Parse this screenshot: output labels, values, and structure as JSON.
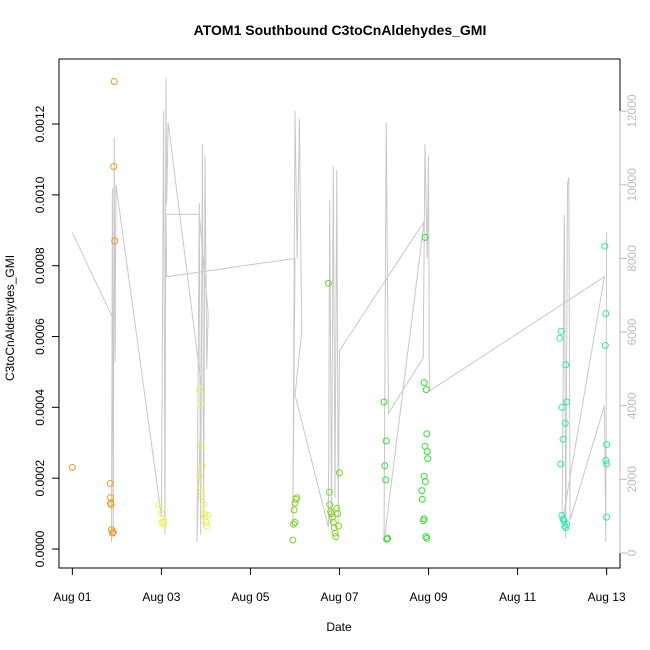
{
  "chart_data": {
    "type": "scatter",
    "title": "ATOM1 Southbound C3toCnAldehydes_GMI",
    "xlabel": "Date",
    "ylabel": "C3toCnAldehydes_GMI",
    "x_tick_labels": [
      "Aug 01",
      "Aug 03",
      "Aug 05",
      "Aug 07",
      "Aug 09",
      "Aug 11",
      "Aug 13"
    ],
    "x_tick_days": [
      1,
      3,
      5,
      7,
      9,
      11,
      13
    ],
    "xlim": [
      0.7,
      13.3
    ],
    "ylim": [
      0,
      0.00133
    ],
    "y_ticks": [
      0.0,
      0.0002,
      0.0004,
      0.0006,
      0.0008,
      0.001,
      0.0012
    ],
    "y_tick_labels": [
      "0.0000",
      "0.0002",
      "0.0004",
      "0.0006",
      "0.0008",
      "0.0010",
      "0.0012"
    ],
    "secondary_axis": {
      "ylim": [
        0,
        12900
      ],
      "ticks": [
        0,
        2000,
        4000,
        6000,
        8000,
        10000,
        12000
      ],
      "tick_labels": [
        "0",
        "2000",
        "4000",
        "6000",
        "8000",
        "10000",
        "12000"
      ],
      "color": "#bdbdbd"
    },
    "altitude_trace": [
      [
        1.0,
        8700
      ],
      [
        1.9,
        6400
      ],
      [
        1.88,
        300
      ],
      [
        1.9,
        9900
      ],
      [
        1.92,
        500
      ],
      [
        1.94,
        11300
      ],
      [
        1.96,
        5200
      ],
      [
        1.98,
        10000
      ],
      [
        3.0,
        1000
      ],
      [
        3.05,
        12000
      ],
      [
        3.08,
        500
      ],
      [
        3.1,
        12900
      ],
      [
        3.12,
        9500
      ],
      [
        3.15,
        11700
      ],
      [
        3.9,
        4500
      ],
      [
        3.8,
        300
      ],
      [
        3.85,
        9500
      ],
      [
        3.88,
        500
      ],
      [
        3.92,
        11100
      ],
      [
        3.95,
        700
      ],
      [
        3.98,
        10800
      ],
      [
        4.02,
        5000
      ],
      [
        4.05,
        6500
      ],
      [
        3.85,
        9200
      ],
      [
        3.1,
        9200
      ],
      [
        3.12,
        7500
      ],
      [
        6.0,
        8000
      ],
      [
        5.95,
        700
      ],
      [
        6.0,
        12000
      ],
      [
        6.05,
        8000
      ],
      [
        6.1,
        11800
      ],
      [
        6.15,
        6000
      ],
      [
        6.0,
        4300
      ],
      [
        6.75,
        700
      ],
      [
        6.78,
        9600
      ],
      [
        6.82,
        800
      ],
      [
        6.86,
        10500
      ],
      [
        6.9,
        1500
      ],
      [
        6.94,
        10400
      ],
      [
        6.97,
        800
      ],
      [
        7.0,
        5500
      ],
      [
        8.9,
        9000
      ],
      [
        8.0,
        300
      ],
      [
        8.05,
        11700
      ],
      [
        8.1,
        3800
      ],
      [
        8.88,
        5300
      ],
      [
        8.92,
        11100
      ],
      [
        8.97,
        8000
      ],
      [
        9.0,
        10800
      ],
      [
        9.02,
        4400
      ],
      [
        12.95,
        7500
      ],
      [
        12.0,
        800
      ],
      [
        12.05,
        9200
      ],
      [
        12.08,
        400
      ],
      [
        12.12,
        10000
      ],
      [
        12.15,
        10200
      ],
      [
        12.18,
        900
      ],
      [
        12.95,
        4000
      ],
      [
        12.98,
        300
      ],
      [
        13.0,
        8700
      ]
    ],
    "points": [
      {
        "x": 1.0,
        "y": 0.00023,
        "color": "#f5961e"
      },
      {
        "x": 1.85,
        "y": 0.000185,
        "color": "#f5961e"
      },
      {
        "x": 1.86,
        "y": 0.000145,
        "color": "#f5961e"
      },
      {
        "x": 1.86,
        "y": 0.00013,
        "color": "#f5961e"
      },
      {
        "x": 1.87,
        "y": 0.000125,
        "color": "#f5961e"
      },
      {
        "x": 1.88,
        "y": 5.5e-05,
        "color": "#f5961e"
      },
      {
        "x": 1.9,
        "y": 4.5e-05,
        "color": "#f5961e"
      },
      {
        "x": 1.92,
        "y": 4.8e-05,
        "color": "#f5961e"
      },
      {
        "x": 1.93,
        "y": 0.00108,
        "color": "#f5961e"
      },
      {
        "x": 1.95,
        "y": 0.00087,
        "color": "#f5961e"
      },
      {
        "x": 1.94,
        "y": 0.00132,
        "color": "#f5961e"
      },
      {
        "x": 2.95,
        "y": 0.000125,
        "color": "#eef05a"
      },
      {
        "x": 3.0,
        "y": 0.0001,
        "color": "#eef05a"
      },
      {
        "x": 3.02,
        "y": 7.5e-05,
        "color": "#eef05a"
      },
      {
        "x": 3.04,
        "y": 7e-05,
        "color": "#eef05a"
      },
      {
        "x": 3.06,
        "y": 7.8e-05,
        "color": "#eef05a"
      },
      {
        "x": 3.85,
        "y": 0.00045,
        "color": "#eef05a"
      },
      {
        "x": 3.88,
        "y": 0.00041,
        "color": "#eef05a"
      },
      {
        "x": 3.9,
        "y": 0.00029,
        "color": "#eef05a"
      },
      {
        "x": 3.92,
        "y": 0.000235,
        "color": "#eef05a"
      },
      {
        "x": 3.86,
        "y": 0.000205,
        "color": "#eef05a"
      },
      {
        "x": 3.88,
        "y": 0.000175,
        "color": "#eef05a"
      },
      {
        "x": 3.9,
        "y": 0.00015,
        "color": "#eef05a"
      },
      {
        "x": 3.95,
        "y": 0.000125,
        "color": "#eef05a"
      },
      {
        "x": 3.96,
        "y": 0.0001,
        "color": "#eef05a"
      },
      {
        "x": 3.98,
        "y": 9e-05,
        "color": "#eef05a"
      },
      {
        "x": 4.0,
        "y": 7.5e-05,
        "color": "#eef05a"
      },
      {
        "x": 4.02,
        "y": 6.5e-05,
        "color": "#eef05a"
      },
      {
        "x": 4.04,
        "y": 9.5e-05,
        "color": "#eef05a"
      },
      {
        "x": 5.95,
        "y": 2.5e-05,
        "color": "#7fd41e"
      },
      {
        "x": 5.97,
        "y": 7e-05,
        "color": "#7fd41e"
      },
      {
        "x": 5.98,
        "y": 0.00011,
        "color": "#7fd41e"
      },
      {
        "x": 6.0,
        "y": 0.00013,
        "color": "#7fd41e"
      },
      {
        "x": 6.02,
        "y": 0.00014,
        "color": "#7fd41e"
      },
      {
        "x": 6.04,
        "y": 0.000145,
        "color": "#7fd41e"
      },
      {
        "x": 6.0,
        "y": 7.5e-05,
        "color": "#7fd41e"
      },
      {
        "x": 6.75,
        "y": 0.00075,
        "color": "#7fd41e"
      },
      {
        "x": 6.77,
        "y": 0.00016,
        "color": "#7fd41e"
      },
      {
        "x": 6.78,
        "y": 0.000125,
        "color": "#7fd41e"
      },
      {
        "x": 6.8,
        "y": 0.000105,
        "color": "#7fd41e"
      },
      {
        "x": 6.82,
        "y": 0.0001,
        "color": "#7fd41e"
      },
      {
        "x": 6.84,
        "y": 9e-05,
        "color": "#7fd41e"
      },
      {
        "x": 6.86,
        "y": 7.5e-05,
        "color": "#7fd41e"
      },
      {
        "x": 6.88,
        "y": 6e-05,
        "color": "#7fd41e"
      },
      {
        "x": 6.9,
        "y": 4.5e-05,
        "color": "#7fd41e"
      },
      {
        "x": 6.92,
        "y": 3.5e-05,
        "color": "#7fd41e"
      },
      {
        "x": 6.94,
        "y": 0.000115,
        "color": "#7fd41e"
      },
      {
        "x": 6.96,
        "y": 0.0001,
        "color": "#7fd41e"
      },
      {
        "x": 6.98,
        "y": 6.5e-05,
        "color": "#7fd41e"
      },
      {
        "x": 7.0,
        "y": 0.000215,
        "color": "#7fd41e"
      },
      {
        "x": 8.0,
        "y": 0.000415,
        "color": "#35e035"
      },
      {
        "x": 8.02,
        "y": 0.000235,
        "color": "#35e035"
      },
      {
        "x": 8.04,
        "y": 0.000195,
        "color": "#35e035"
      },
      {
        "x": 8.05,
        "y": 0.000305,
        "color": "#35e035"
      },
      {
        "x": 8.06,
        "y": 2.8e-05,
        "color": "#35e035"
      },
      {
        "x": 8.08,
        "y": 3e-05,
        "color": "#35e035"
      },
      {
        "x": 8.85,
        "y": 0.000165,
        "color": "#35e035"
      },
      {
        "x": 8.86,
        "y": 0.00014,
        "color": "#35e035"
      },
      {
        "x": 8.88,
        "y": 8e-05,
        "color": "#35e035"
      },
      {
        "x": 8.9,
        "y": 8.5e-05,
        "color": "#35e035"
      },
      {
        "x": 8.9,
        "y": 0.00047,
        "color": "#35e035"
      },
      {
        "x": 8.92,
        "y": 0.00029,
        "color": "#35e035"
      },
      {
        "x": 8.93,
        "y": 0.00019,
        "color": "#35e035"
      },
      {
        "x": 8.95,
        "y": 0.00045,
        "color": "#35e035"
      },
      {
        "x": 8.96,
        "y": 0.000325,
        "color": "#35e035"
      },
      {
        "x": 8.97,
        "y": 0.000275,
        "color": "#35e035"
      },
      {
        "x": 8.98,
        "y": 0.000255,
        "color": "#35e035"
      },
      {
        "x": 8.92,
        "y": 0.00088,
        "color": "#35e035"
      },
      {
        "x": 8.94,
        "y": 3.5e-05,
        "color": "#35e035"
      },
      {
        "x": 8.96,
        "y": 3e-05,
        "color": "#35e035"
      },
      {
        "x": 8.9,
        "y": 0.000205,
        "color": "#35e035"
      },
      {
        "x": 11.95,
        "y": 0.000595,
        "color": "#2ee8b0"
      },
      {
        "x": 11.98,
        "y": 0.000615,
        "color": "#2ee8b0"
      },
      {
        "x": 12.0,
        "y": 0.0004,
        "color": "#2ee8b0"
      },
      {
        "x": 12.02,
        "y": 0.00031,
        "color": "#2ee8b0"
      },
      {
        "x": 11.97,
        "y": 0.00024,
        "color": "#2ee8b0"
      },
      {
        "x": 12.08,
        "y": 0.00052,
        "color": "#2ee8b0"
      },
      {
        "x": 12.1,
        "y": 0.000415,
        "color": "#2ee8b0"
      },
      {
        "x": 12.07,
        "y": 0.000355,
        "color": "#2ee8b0"
      },
      {
        "x": 12.0,
        "y": 9.5e-05,
        "color": "#2ee8b0"
      },
      {
        "x": 12.02,
        "y": 8.5e-05,
        "color": "#2ee8b0"
      },
      {
        "x": 12.04,
        "y": 8e-05,
        "color": "#2ee8b0"
      },
      {
        "x": 12.06,
        "y": 6.5e-05,
        "color": "#2ee8b0"
      },
      {
        "x": 12.08,
        "y": 6e-05,
        "color": "#2ee8b0"
      },
      {
        "x": 12.1,
        "y": 7e-05,
        "color": "#2ee8b0"
      },
      {
        "x": 12.96,
        "y": 0.000855,
        "color": "#2ee8b0"
      },
      {
        "x": 12.98,
        "y": 0.000665,
        "color": "#2ee8b0"
      },
      {
        "x": 12.97,
        "y": 0.000575,
        "color": "#2ee8b0"
      },
      {
        "x": 13.0,
        "y": 0.000295,
        "color": "#2ee8b0"
      },
      {
        "x": 12.98,
        "y": 0.00025,
        "color": "#2ee8b0"
      },
      {
        "x": 13.0,
        "y": 0.00024,
        "color": "#2ee8b0"
      },
      {
        "x": 13.0,
        "y": 9e-05,
        "color": "#2ee8b0"
      }
    ]
  }
}
